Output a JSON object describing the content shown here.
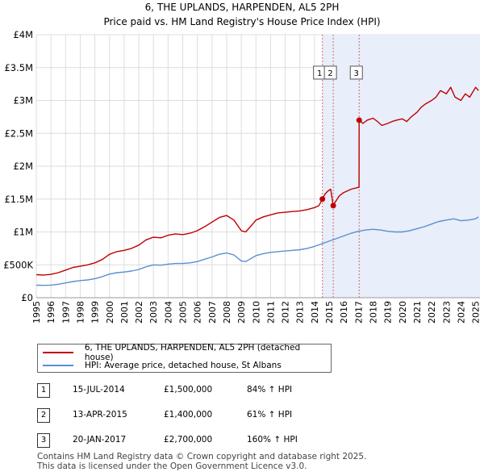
{
  "chart_data": {
    "type": "line",
    "title": "6, THE UPLANDS, HARPENDEN, AL5 2PH",
    "subtitle": "Price paid vs. HM Land Registry's House Price Index (HPI)",
    "x_ticks": [
      "1995",
      "1996",
      "1997",
      "1998",
      "1999",
      "2000",
      "2001",
      "2002",
      "2003",
      "2004",
      "2005",
      "2006",
      "2007",
      "2008",
      "2009",
      "2010",
      "2011",
      "2012",
      "2013",
      "2014",
      "2015",
      "2016",
      "2017",
      "2018",
      "2019",
      "2020",
      "2021",
      "2022",
      "2023",
      "2024",
      "2025"
    ],
    "xlim": [
      1995,
      2025.3
    ],
    "y_ticks": [
      0,
      500000,
      1000000,
      1500000,
      2000000,
      2500000,
      3000000,
      3500000,
      4000000
    ],
    "y_tick_labels": [
      "£0",
      "£500K",
      "£1M",
      "£1.5M",
      "£2M",
      "£2.5M",
      "£3M",
      "£3.5M",
      "£4M"
    ],
    "ylim": [
      0,
      4000000
    ],
    "grid": true,
    "series": [
      {
        "name": "6, THE UPLANDS, HARPENDEN, AL5 2PH (detached house)",
        "color": "#c00000",
        "x": [
          1995,
          1995.5,
          1996,
          1996.5,
          1997,
          1997.5,
          1998,
          1998.5,
          1999,
          1999.5,
          2000,
          2000.5,
          2001,
          2001.5,
          2002,
          2002.5,
          2003,
          2003.5,
          2004,
          2004.5,
          2005,
          2005.5,
          2006,
          2006.5,
          2007,
          2007.5,
          2008,
          2008.5,
          2009,
          2009.3,
          2009.7,
          2010,
          2010.5,
          2011,
          2011.5,
          2012,
          2012.5,
          2013,
          2013.5,
          2014,
          2014.3,
          2014.54,
          2014.7,
          2014.9,
          2015.1,
          2015.28,
          2015.4,
          2015.7,
          2016,
          2016.5,
          2017.04,
          2017.05,
          2017.3,
          2017.6,
          2018,
          2018.3,
          2018.6,
          2019,
          2019.3,
          2019.6,
          2020,
          2020.3,
          2020.6,
          2021,
          2021.3,
          2021.6,
          2022,
          2022.3,
          2022.6,
          2023,
          2023.3,
          2023.6,
          2024,
          2024.3,
          2024.6,
          2025,
          2025.2
        ],
        "values": [
          350000,
          345000,
          355000,
          380000,
          420000,
          460000,
          480000,
          500000,
          530000,
          580000,
          660000,
          700000,
          720000,
          750000,
          800000,
          880000,
          920000,
          910000,
          950000,
          970000,
          960000,
          980000,
          1020000,
          1080000,
          1150000,
          1220000,
          1250000,
          1180000,
          1020000,
          1000000,
          1100000,
          1180000,
          1230000,
          1260000,
          1290000,
          1300000,
          1310000,
          1320000,
          1340000,
          1370000,
          1400000,
          1500000,
          1570000,
          1620000,
          1650000,
          1400000,
          1450000,
          1550000,
          1600000,
          1650000,
          1680000,
          2700000,
          2650000,
          2700000,
          2730000,
          2680000,
          2620000,
          2650000,
          2680000,
          2700000,
          2720000,
          2680000,
          2750000,
          2820000,
          2900000,
          2950000,
          3000000,
          3050000,
          3150000,
          3100000,
          3200000,
          3050000,
          3000000,
          3100000,
          3050000,
          3200000,
          3150000
        ]
      },
      {
        "name": "HPI: Average price, detached house, St Albans",
        "color": "#5b8fcf",
        "x": [
          1995,
          1995.5,
          1996,
          1996.5,
          1997,
          1997.5,
          1998,
          1998.5,
          1999,
          1999.5,
          2000,
          2000.5,
          2001,
          2001.5,
          2002,
          2002.5,
          2003,
          2003.5,
          2004,
          2004.5,
          2005,
          2005.5,
          2006,
          2006.5,
          2007,
          2007.5,
          2008,
          2008.5,
          2009,
          2009.3,
          2009.7,
          2010,
          2010.5,
          2011,
          2011.5,
          2012,
          2012.5,
          2013,
          2013.5,
          2014,
          2014.5,
          2015,
          2015.5,
          2016,
          2016.5,
          2017,
          2017.5,
          2018,
          2018.5,
          2019,
          2019.5,
          2020,
          2020.5,
          2021,
          2021.5,
          2022,
          2022.5,
          2023,
          2023.5,
          2024,
          2024.5,
          2025,
          2025.2
        ],
        "values": [
          190000,
          188000,
          192000,
          205000,
          225000,
          245000,
          260000,
          270000,
          290000,
          320000,
          360000,
          380000,
          390000,
          405000,
          430000,
          470000,
          500000,
          495000,
          510000,
          520000,
          520000,
          530000,
          550000,
          585000,
          620000,
          660000,
          680000,
          650000,
          560000,
          550000,
          600000,
          640000,
          670000,
          690000,
          700000,
          710000,
          720000,
          730000,
          750000,
          780000,
          820000,
          860000,
          900000,
          940000,
          980000,
          1010000,
          1030000,
          1040000,
          1030000,
          1010000,
          1000000,
          1000000,
          1020000,
          1050000,
          1080000,
          1120000,
          1160000,
          1180000,
          1200000,
          1170000,
          1180000,
          1200000,
          1230000
        ]
      }
    ],
    "sales": [
      {
        "label": "1",
        "x": 2014.54,
        "value": 1500000
      },
      {
        "label": "2",
        "x": 2015.28,
        "value": 1400000
      },
      {
        "label": "3",
        "x": 2017.05,
        "value": 2700000
      }
    ]
  },
  "legend": {
    "property_label": "6, THE UPLANDS, HARPENDEN, AL5 2PH (detached house)",
    "hpi_label": "HPI: Average price, detached house, St Albans"
  },
  "transactions": [
    {
      "num": "1",
      "date": "15-JUL-2014",
      "price": "£1,500,000",
      "hpi": "84% ↑ HPI"
    },
    {
      "num": "2",
      "date": "13-APR-2015",
      "price": "£1,400,000",
      "hpi": "61% ↑ HPI"
    },
    {
      "num": "3",
      "date": "20-JAN-2017",
      "price": "£2,700,000",
      "hpi": "160% ↑ HPI"
    }
  ],
  "footer": {
    "line1": "Contains HM Land Registry data © Crown copyright and database right 2025.",
    "line2": "This data is licensed under the Open Government Licence v3.0."
  }
}
